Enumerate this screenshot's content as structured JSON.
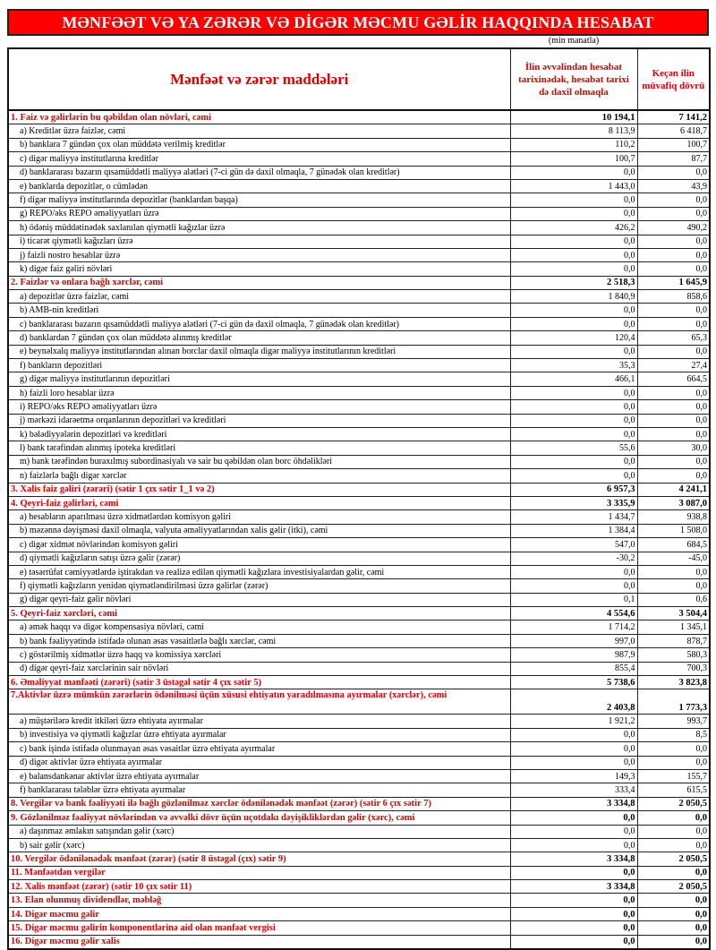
{
  "title": "MƏNFƏƏT VƏ YA ZƏRƏR VƏ DİGƏR MƏCMU GƏLİR HAQQINDA HESABAT",
  "unit": "(min manatla)",
  "header": {
    "items": "Mənfəət və zərər maddələri",
    "current": "İlin əvvəlindən hesabat tarixinədək, hesabat tarixi də daxil olmaqla",
    "previous": "Keçən ilin müvafiq dövrü"
  },
  "colors": {
    "accent": "#e00000",
    "title_bg": "#ff0000"
  },
  "rows": [
    {
      "type": "sec",
      "label": "1. Faiz və gəlirlərin bu qəbildən olan növləri, cəmi",
      "cur": "10 194,1",
      "prev": "7 141,2"
    },
    {
      "type": "item",
      "label": "a) Kreditlər üzrə faizlər, cəmi",
      "cur": "8 113,9",
      "prev": "6 418,7"
    },
    {
      "type": "item",
      "label": "b) banklara 7 gündən çox olan müddətə verilmiş kreditlər",
      "cur": "110,2",
      "prev": "100,7"
    },
    {
      "type": "item",
      "label": "c) digər maliyyə institutlarına kreditlər",
      "cur": "100,7",
      "prev": "87,7"
    },
    {
      "type": "item",
      "label": "d) banklararası bazarın qısamüddətli maliyyə alətləri (7-ci gün də daxil olmaqla, 7 günədək olan kreditlər)",
      "cur": "0,0",
      "prev": "0,0"
    },
    {
      "type": "item",
      "label": "e) banklarda depozitlər, o cümlədən",
      "cur": "1 443,0",
      "prev": "43,9"
    },
    {
      "type": "item",
      "label": "f) digər maliyyə institutlarında depozitlər (banklardan başqa)",
      "cur": "0,0",
      "prev": "0,0"
    },
    {
      "type": "item",
      "label": "g) REPO/əks REPO əməliyyatları üzrə",
      "cur": "0,0",
      "prev": "0,0"
    },
    {
      "type": "item",
      "label": "h) ödəniş müddətinədək saxlanılan qiymətli kağızlar üzrə",
      "cur": "426,2",
      "prev": "490,2"
    },
    {
      "type": "item",
      "label": "i) ticarət qiymətli kağızları üzrə",
      "cur": "0,0",
      "prev": "0,0"
    },
    {
      "type": "item",
      "label": "j) faizli nostro hesablar üzrə",
      "cur": "0,0",
      "prev": "0,0"
    },
    {
      "type": "item",
      "label": "k) digər faiz gəliri növləri",
      "cur": "0,0",
      "prev": "0,0"
    },
    {
      "type": "sec",
      "label": "2. Faizlər və onlara bağlı xərclər, cəmi",
      "cur": "2 518,3",
      "prev": "1 645,9"
    },
    {
      "type": "item",
      "label": "a) depozitlər üzrə faizlər, cəmi",
      "cur": "1 840,9",
      "prev": "858,6"
    },
    {
      "type": "item",
      "label": "b) AMB-nin kreditləri",
      "cur": "0,0",
      "prev": "0,0"
    },
    {
      "type": "item",
      "label": "c) banklararası bazarın qısamüddətli maliyyə alətləri (7-ci gün də daxil olmaqla, 7 günədək olan kreditlər)",
      "cur": "0,0",
      "prev": "0,0"
    },
    {
      "type": "item",
      "label": "d) banklardan 7 gündən çox olan müddətə alınmış kreditlər",
      "cur": "120,4",
      "prev": "65,3"
    },
    {
      "type": "item",
      "label": "e) beynəlxalq maliyyə institutlarından alınan borclar daxil olmaqla digər maliyyə institutlarının kreditləri",
      "cur": "0,0",
      "prev": "0,0"
    },
    {
      "type": "item",
      "label": "f) bankların depozitləri",
      "cur": "35,3",
      "prev": "27,4"
    },
    {
      "type": "item",
      "label": "g) digər maliyyə institutlarının depozitləri",
      "cur": "466,1",
      "prev": "664,5"
    },
    {
      "type": "item",
      "label": "h) faizli loro hesablar üzrə",
      "cur": "0,0",
      "prev": "0,0"
    },
    {
      "type": "item",
      "label": "i) REPO/əks REPO əməliyyatları üzrə",
      "cur": "0,0",
      "prev": "0,0"
    },
    {
      "type": "item",
      "label": "j) mərkəzi idarəetmə orqanlarının depozitləri və kreditləri",
      "cur": "0,0",
      "prev": "0,0"
    },
    {
      "type": "item",
      "label": "k) bələdiyyələrin depozitləri və kreditləri",
      "cur": "0,0",
      "prev": "0,0"
    },
    {
      "type": "item",
      "label": "l) bank tərəfindən alınmış ipoteka kreditləri",
      "cur": "55,6",
      "prev": "30,0"
    },
    {
      "type": "item",
      "label": "m) bank tərəfindən buraxılmış subordinasiyalı və sair bu qəbildən olan borc öhdəlikləri",
      "cur": "0,0",
      "prev": "0,0"
    },
    {
      "type": "item",
      "label": "n) faizlərlə bağlı digər xərclər",
      "cur": "0,0",
      "prev": "0,0"
    },
    {
      "type": "sec",
      "label": "3. Xalis faiz gəliri (zərəri) (sətir 1 çıx sətir 1_1 və 2)",
      "cur": "6 957,3",
      "prev": "4 241,1"
    },
    {
      "type": "sec",
      "label": "4. Qeyri-faiz gəlirləri, cəmi",
      "cur": "3 335,9",
      "prev": "3 087,0"
    },
    {
      "type": "item",
      "label": "a) hesabların aparılması üzrə xidmətlərdən komisyon gəliri",
      "cur": "1 434,7",
      "prev": "938,8"
    },
    {
      "type": "item",
      "label": "b) məzənnə dəyişməsi daxil olmaqla, valyuta əməliyyatlarından xalis gəlir (itki), cəmi",
      "cur": "1 384,4",
      "prev": "1 508,0"
    },
    {
      "type": "item",
      "label": "c) digər xidmət növlərindən komisyon gəliri",
      "cur": "547,0",
      "prev": "684,5"
    },
    {
      "type": "item",
      "label": "d) qiymətli kağızların satışı üzrə gəlir (zərər)",
      "cur": "-30,2",
      "prev": "-45,0"
    },
    {
      "type": "item",
      "label": "e) təsərrüfat cəmiyyətlərdə iştirakdan və realizə edilən qiymətli kağızlara investisiyalardan gəlir, cəmi",
      "cur": "0,0",
      "prev": "0,0"
    },
    {
      "type": "item",
      "label": "f) qiymətli kağızların yenidən qiymətləndirilməsi üzrə gəlirlər (zərər)",
      "cur": "0,0",
      "prev": "0,0"
    },
    {
      "type": "item",
      "label": "g) digər qeyri-faiz gəlir növləri",
      "cur": "0,1",
      "prev": "0,6"
    },
    {
      "type": "sec",
      "label": "5. Qeyri-faiz xərcləri, cəmi",
      "cur": "4 554,6",
      "prev": "3 504,4"
    },
    {
      "type": "item",
      "label": "a) əmək haqqı və digər kompensasiya növləri, cəmi",
      "cur": "1 714,2",
      "prev": "1 345,1"
    },
    {
      "type": "item",
      "label": "b) bank fəaliyyətində istifadə olunan əsas vəsaitlərlə bağlı xərclər, cəmi",
      "cur": "997,0",
      "prev": "878,7"
    },
    {
      "type": "item",
      "label": "c) göstərilmiş xidmətlər üzrə haqq və komissiya xərcləri",
      "cur": "987,9",
      "prev": "580,3"
    },
    {
      "type": "item",
      "label": "d) digər qeyri-faiz xərclərinin sair növləri",
      "cur": "855,4",
      "prev": "700,3"
    },
    {
      "type": "sec",
      "label": "6. Əməliyyat mənfəəti (zərəri) (sətir 3 üstəgəl sətir 4 çıx sətir 5)",
      "cur": "5 738,6",
      "prev": "3 823,8"
    },
    {
      "type": "sec tall",
      "label": "7.Aktivlər üzrə mümkün zərərlərin ödənilməsi üçün xüsusi ehtiyatın yaradılmasına ayırmalar (xərclər), cəmi",
      "cur": "2 403,8",
      "prev": "1 773,3"
    },
    {
      "type": "item",
      "label": "a) müştərilərə kredit itkiləri üzrə ehtiyata ayırmalar",
      "cur": "1 921,2",
      "prev": "993,7"
    },
    {
      "type": "item",
      "label": "b) investisiya və qiymətli kağızlar üzrə ehtiyata ayırmalar",
      "cur": "0,0",
      "prev": "8,5"
    },
    {
      "type": "item",
      "label": "c) bank işində istifadə olunmayan əsas vəsaitlər üzrə ehtiyata ayırmalar",
      "cur": "0,0",
      "prev": "0,0"
    },
    {
      "type": "item",
      "label": "d) digər aktivlər üzrə ehtiyata ayırmalar",
      "cur": "0,0",
      "prev": "0,0"
    },
    {
      "type": "item",
      "label": "e) balansdankənar aktivlər üzrə ehtiyata ayırmalar",
      "cur": "149,3",
      "prev": "155,7"
    },
    {
      "type": "item",
      "label": "f) banklararası tələblər üzrə ehtiyata ayırmalar",
      "cur": "333,4",
      "prev": "615,5"
    },
    {
      "type": "sec",
      "label": "8. Vergilər və bank fəaliyyəti ilə bağlı gözlənilməz xərclər ödənilənədək mənfəət (zərər) (sətir 6 çıx sətir 7)",
      "cur": "3 334,8",
      "prev": "2 050,5"
    },
    {
      "type": "sec",
      "label": "9. Gözlənilməz fəaliyyət növlərindən və əvvəlki dövr üçün uçotdakı dəyişikliklərdən gəlir (xərc), cəmi",
      "cur": "0,0",
      "prev": "0,0"
    },
    {
      "type": "item",
      "label": "a) daşınmaz əmlakın satışından gəlir (xərc)",
      "cur": "0,0",
      "prev": "0,0"
    },
    {
      "type": "item",
      "label": "b) sair gəlir (xərc)",
      "cur": "0,0",
      "prev": "0,0"
    },
    {
      "type": "sec",
      "label": "10. Vergilər ödənilənədək mənfəət (zərər) (sətir 8 üstəgəl (çıx) sətir 9)",
      "cur": "3 334,8",
      "prev": "2 050,5"
    },
    {
      "type": "sec",
      "label": "11. Mənfəətdən vergilər",
      "cur": "0,0",
      "prev": "0,0"
    },
    {
      "type": "sec",
      "label": "12. Xalis mənfəət (zərər) (sətir 10 çıx sətir 11)",
      "cur": "3 334,8",
      "prev": "2 050,5"
    },
    {
      "type": "sec",
      "label": "13. Elan olunmuş dividendlər, məbləğ",
      "cur": "0,0",
      "prev": "0,0"
    },
    {
      "type": "sec",
      "label": "14. Digər məcmu gəlir",
      "cur": "0,0",
      "prev": "0,0"
    },
    {
      "type": "sec",
      "label": "15. Digər məcmu gəlirin komponentlərinə aid olan mənfəət vergisi",
      "cur": "0,0",
      "prev": "0,0"
    },
    {
      "type": "sec",
      "label": "16. Digər məcmu gəlir xalis",
      "cur": "0,0",
      "prev": "0,0"
    }
  ]
}
